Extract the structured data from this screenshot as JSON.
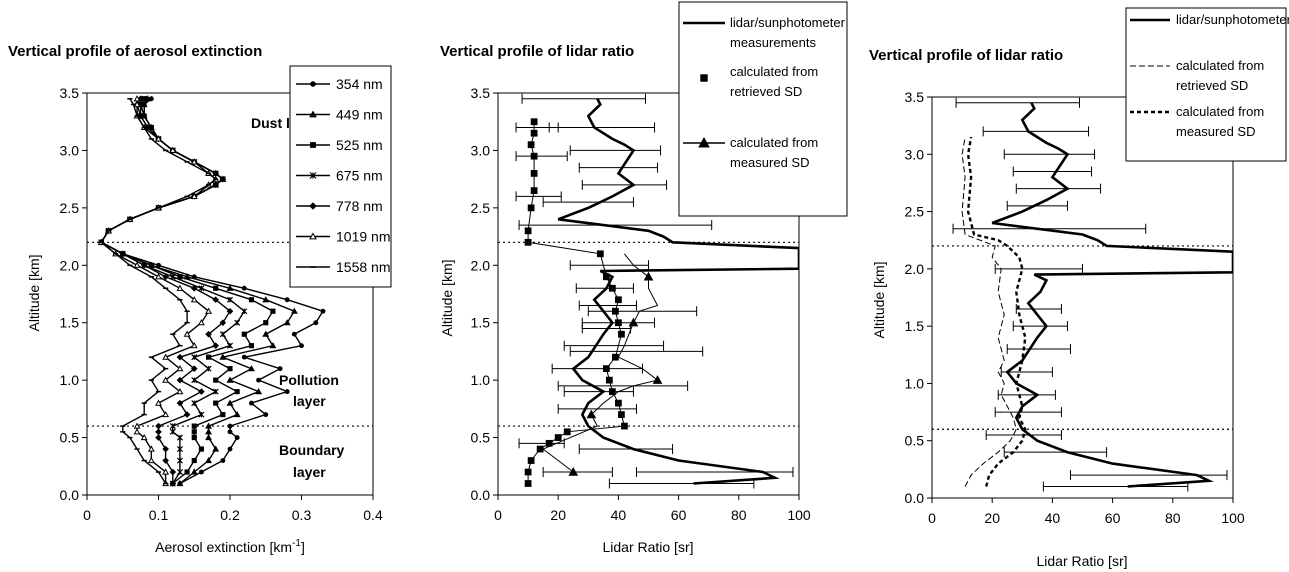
{
  "chart_data": [
    {
      "type": "line",
      "title": "Vertical profile of aerosol extinction",
      "xlabel": "Aerosol extinction [km",
      "xlabel_sup": "-1",
      "xlabel_end": "]",
      "ylabel": "Altitude [km]",
      "xlim": [
        0,
        0.4
      ],
      "ylim": [
        0,
        3.5
      ],
      "xticks": [
        "0",
        "0.1",
        "0.2",
        "0.3",
        "0.4"
      ],
      "yticks": [
        "0.0",
        "0.5",
        "1.0",
        "1.5",
        "2.0",
        "2.5",
        "3.0",
        "3.5"
      ],
      "legend_position": "top-right",
      "annotations": [
        "Dust layer",
        "Pollution layer",
        "Boundary layer"
      ],
      "hlines": [
        2.2,
        0.6
      ],
      "series": [
        {
          "name": "354 nm",
          "marker": "circle"
        },
        {
          "name": "449 nm",
          "marker": "triangle"
        },
        {
          "name": "525 nm",
          "marker": "square"
        },
        {
          "name": "675 nm",
          "marker": "star"
        },
        {
          "name": "778 nm",
          "marker": "diamond"
        },
        {
          "name": "1019 nm",
          "marker": "triangle-open"
        },
        {
          "name": "1558 nm",
          "marker": "dash"
        }
      ],
      "altitudes": [
        0.1,
        0.2,
        0.3,
        0.4,
        0.5,
        0.55,
        0.6,
        0.7,
        0.8,
        0.9,
        1.0,
        1.1,
        1.2,
        1.3,
        1.4,
        1.5,
        1.6,
        1.7,
        1.8,
        1.9,
        2.0,
        2.1,
        2.2,
        2.3,
        2.4,
        2.5,
        2.6,
        2.7,
        2.75,
        2.8,
        2.9,
        3.0,
        3.1,
        3.2,
        3.3,
        3.4,
        3.45
      ],
      "extinction": [
        [
          0.13,
          0.16,
          0.19,
          0.2,
          0.21,
          0.2,
          0.2,
          0.25,
          0.23,
          0.28,
          0.24,
          0.27,
          0.22,
          0.3,
          0.29,
          0.32,
          0.33,
          0.28,
          0.22,
          0.15,
          0.1,
          0.05,
          0.02,
          0.03,
          0.06,
          0.1,
          0.15,
          0.18,
          0.19,
          0.18,
          0.15,
          0.12,
          0.1,
          0.09,
          0.08,
          0.08,
          0.09
        ],
        [
          0.13,
          0.15,
          0.17,
          0.18,
          0.17,
          0.17,
          0.17,
          0.21,
          0.2,
          0.24,
          0.2,
          0.23,
          0.19,
          0.26,
          0.25,
          0.28,
          0.29,
          0.25,
          0.2,
          0.14,
          0.09,
          0.05,
          0.02,
          0.03,
          0.06,
          0.1,
          0.15,
          0.18,
          0.19,
          0.18,
          0.15,
          0.12,
          0.1,
          0.09,
          0.08,
          0.08,
          0.085
        ],
        [
          0.12,
          0.14,
          0.15,
          0.16,
          0.15,
          0.15,
          0.15,
          0.19,
          0.18,
          0.21,
          0.18,
          0.2,
          0.17,
          0.23,
          0.22,
          0.25,
          0.26,
          0.23,
          0.18,
          0.13,
          0.09,
          0.05,
          0.02,
          0.03,
          0.06,
          0.1,
          0.15,
          0.18,
          0.19,
          0.18,
          0.15,
          0.12,
          0.1,
          0.09,
          0.08,
          0.075,
          0.08
        ],
        [
          0.12,
          0.13,
          0.13,
          0.13,
          0.13,
          0.12,
          0.12,
          0.16,
          0.15,
          0.18,
          0.15,
          0.17,
          0.15,
          0.2,
          0.19,
          0.21,
          0.22,
          0.2,
          0.16,
          0.12,
          0.08,
          0.05,
          0.02,
          0.03,
          0.06,
          0.1,
          0.15,
          0.18,
          0.19,
          0.18,
          0.15,
          0.12,
          0.1,
          0.085,
          0.075,
          0.075,
          0.08
        ],
        [
          0.12,
          0.12,
          0.11,
          0.11,
          0.1,
          0.1,
          0.1,
          0.14,
          0.13,
          0.16,
          0.13,
          0.15,
          0.13,
          0.18,
          0.17,
          0.19,
          0.2,
          0.18,
          0.15,
          0.11,
          0.08,
          0.05,
          0.02,
          0.03,
          0.06,
          0.1,
          0.15,
          0.18,
          0.19,
          0.18,
          0.15,
          0.12,
          0.1,
          0.085,
          0.075,
          0.07,
          0.075
        ],
        [
          0.11,
          0.11,
          0.09,
          0.09,
          0.08,
          0.07,
          0.07,
          0.11,
          0.1,
          0.13,
          0.11,
          0.13,
          0.11,
          0.15,
          0.14,
          0.16,
          0.17,
          0.15,
          0.13,
          0.1,
          0.07,
          0.04,
          0.02,
          0.03,
          0.06,
          0.1,
          0.15,
          0.17,
          0.18,
          0.17,
          0.15,
          0.12,
          0.1,
          0.08,
          0.07,
          0.07,
          0.07
        ],
        [
          0.11,
          0.1,
          0.08,
          0.07,
          0.06,
          0.05,
          0.05,
          0.08,
          0.08,
          0.1,
          0.09,
          0.11,
          0.09,
          0.13,
          0.12,
          0.14,
          0.14,
          0.13,
          0.11,
          0.09,
          0.06,
          0.04,
          0.02,
          0.03,
          0.06,
          0.1,
          0.14,
          0.17,
          0.18,
          0.17,
          0.14,
          0.11,
          0.09,
          0.08,
          0.07,
          0.065,
          0.06
        ]
      ]
    },
    {
      "type": "line",
      "title": "Vertical profile of lidar ratio",
      "xlabel": "Lidar Ratio [sr]",
      "ylabel": "Altitude [km]",
      "xlim": [
        0,
        100
      ],
      "ylim": [
        0,
        3.5
      ],
      "xticks": [
        "0",
        "20",
        "40",
        "60",
        "80",
        "100"
      ],
      "yticks": [
        "0.0",
        "0.5",
        "1.0",
        "1.5",
        "2.0",
        "2.5",
        "3.0",
        "3.5"
      ],
      "legend_position": "top-right",
      "hlines": [
        2.2,
        0.6
      ],
      "series": [
        {
          "name": "lidar/sunphotometer measurements",
          "style": "thick-line",
          "x": [
            65,
            92,
            88,
            60,
            45,
            35,
            30,
            28,
            30,
            35,
            28,
            25,
            30,
            35,
            38,
            35,
            32,
            36,
            38,
            34,
            100,
            100,
            100,
            100,
            58,
            55,
            50,
            20,
            30,
            38,
            45,
            40,
            45,
            42,
            38,
            32,
            30,
            34,
            33
          ],
          "y": [
            0.1,
            0.15,
            0.2,
            0.3,
            0.4,
            0.5,
            0.6,
            0.7,
            0.8,
            0.9,
            1.0,
            1.1,
            1.2,
            1.4,
            1.5,
            1.6,
            1.7,
            1.8,
            1.9,
            1.95,
            1.97,
            2.05,
            2.1,
            2.15,
            2.2,
            2.25,
            2.3,
            2.4,
            2.5,
            2.6,
            2.7,
            2.8,
            3.0,
            3.05,
            3.1,
            3.2,
            3.3,
            3.4,
            3.45
          ],
          "error_altitudes": [
            0.1,
            0.2,
            0.4,
            0.75,
            0.9,
            1.1,
            1.3,
            1.5,
            1.65,
            1.8,
            2.0,
            2.35,
            2.55,
            2.7,
            2.85,
            3.0,
            3.2,
            3.45
          ],
          "error_low": [
            37,
            46,
            27,
            20,
            22,
            18,
            22,
            28,
            27,
            26,
            24,
            7,
            15,
            28,
            27,
            24,
            17,
            8
          ],
          "error_high": [
            85,
            98,
            58,
            46,
            45,
            48,
            55,
            52,
            46,
            45,
            50,
            71,
            45,
            56,
            53,
            54,
            52,
            49
          ]
        },
        {
          "name": "calculated from retrieved SD",
          "marker": "square",
          "x": [
            10,
            10,
            11,
            14,
            17,
            20,
            23,
            42,
            41,
            40,
            38,
            37,
            36,
            39,
            41,
            40,
            39,
            40,
            38,
            36,
            34,
            10,
            10,
            11,
            12,
            12,
            12,
            11,
            12,
            12
          ],
          "y": [
            0.1,
            0.2,
            0.3,
            0.4,
            0.45,
            0.5,
            0.55,
            0.6,
            0.7,
            0.8,
            0.9,
            1.0,
            1.1,
            1.2,
            1.4,
            1.5,
            1.6,
            1.7,
            1.8,
            1.9,
            2.1,
            2.2,
            2.3,
            2.5,
            2.65,
            2.8,
            2.95,
            3.05,
            3.15,
            3.25
          ],
          "error_altitudes": [
            0.45,
            1.45,
            2.6,
            2.95,
            3.2
          ],
          "error_low": [
            7,
            28,
            6,
            6,
            6
          ],
          "error_high": [
            22,
            44,
            21,
            23,
            20
          ]
        },
        {
          "name": "calculated from measured SD",
          "marker": "triangle",
          "x": [
            25,
            20,
            15,
            33,
            31,
            35,
            40,
            45,
            53,
            48,
            40,
            42,
            45,
            47,
            53,
            50,
            50,
            45,
            42
          ],
          "y": [
            0.2,
            0.3,
            0.4,
            0.6,
            0.7,
            0.8,
            0.9,
            0.95,
            1.0,
            1.1,
            1.2,
            1.3,
            1.5,
            1.6,
            1.65,
            1.8,
            1.9,
            2.0,
            2.1
          ],
          "error_altitudes": [
            0.2,
            0.95,
            1.25,
            1.6
          ],
          "error_low": [
            15,
            20,
            24,
            30
          ],
          "error_high": [
            38,
            63,
            68,
            66
          ]
        }
      ]
    },
    {
      "type": "line",
      "title": "Vertical profile of lidar ratio",
      "xlabel": "Lidar Ratio [sr]",
      "ylabel": "Altitude [km]",
      "xlim": [
        0,
        100
      ],
      "ylim": [
        0,
        3.5
      ],
      "xticks": [
        "0",
        "20",
        "40",
        "60",
        "80",
        "100"
      ],
      "yticks": [
        "0.0",
        "0.5",
        "1.0",
        "1.5",
        "2.0",
        "2.5",
        "3.0",
        "3.5"
      ],
      "legend_position": "top-right",
      "hlines": [
        2.2,
        0.6
      ],
      "series": [
        {
          "name": "lidar/sunphotometer measurements",
          "style": "thick-line",
          "x": [
            65,
            92,
            88,
            60,
            45,
            35,
            30,
            28,
            30,
            35,
            28,
            25,
            30,
            35,
            38,
            35,
            32,
            36,
            38,
            34,
            100,
            100,
            100,
            100,
            58,
            55,
            50,
            20,
            30,
            38,
            45,
            40,
            45,
            42,
            38,
            32,
            30,
            34,
            33
          ],
          "y": [
            0.1,
            0.15,
            0.2,
            0.3,
            0.4,
            0.5,
            0.6,
            0.7,
            0.8,
            0.9,
            1.0,
            1.1,
            1.2,
            1.4,
            1.5,
            1.6,
            1.7,
            1.8,
            1.9,
            1.95,
            1.97,
            2.05,
            2.1,
            2.15,
            2.2,
            2.25,
            2.3,
            2.4,
            2.5,
            2.6,
            2.7,
            2.8,
            3.0,
            3.05,
            3.1,
            3.2,
            3.3,
            3.4,
            3.45
          ],
          "error_altitudes": [
            0.1,
            0.2,
            0.4,
            0.55,
            0.75,
            0.9,
            1.1,
            1.3,
            1.5,
            1.65,
            2.0,
            2.35,
            2.55,
            2.7,
            2.85,
            3.0,
            3.2,
            3.45
          ],
          "error_low": [
            37,
            46,
            24,
            18,
            21,
            22,
            23,
            25,
            27,
            28,
            21,
            7,
            25,
            28,
            27,
            24,
            17,
            8
          ],
          "error_high": [
            85,
            98,
            58,
            43,
            43,
            41,
            40,
            46,
            45,
            43,
            50,
            71,
            45,
            56,
            53,
            54,
            52,
            49
          ]
        },
        {
          "name": "calculated from retrieved SD",
          "style": "thin-dash",
          "x": [
            11,
            13,
            17,
            22,
            26,
            28,
            27,
            25,
            23,
            24,
            22,
            24,
            22,
            24,
            22,
            23,
            20,
            21,
            11,
            10,
            11,
            10,
            11
          ],
          "y": [
            0.1,
            0.2,
            0.3,
            0.4,
            0.5,
            0.6,
            0.7,
            0.8,
            0.9,
            1.0,
            1.1,
            1.2,
            1.4,
            1.6,
            1.8,
            2.0,
            2.1,
            2.2,
            2.3,
            2.5,
            2.8,
            3.0,
            3.15
          ]
        },
        {
          "name": "calculated from measured SD",
          "style": "thick-dot",
          "x": [
            18,
            19,
            22,
            27,
            30,
            31,
            29,
            30,
            28,
            30,
            31,
            29,
            28,
            30,
            29,
            25,
            22,
            14,
            12,
            13,
            12,
            13
          ],
          "y": [
            0.1,
            0.2,
            0.3,
            0.4,
            0.5,
            0.6,
            0.7,
            0.8,
            1.0,
            1.2,
            1.4,
            1.6,
            1.8,
            2.0,
            2.1,
            2.2,
            2.25,
            2.3,
            2.5,
            2.8,
            3.0,
            3.15
          ]
        }
      ]
    }
  ]
}
